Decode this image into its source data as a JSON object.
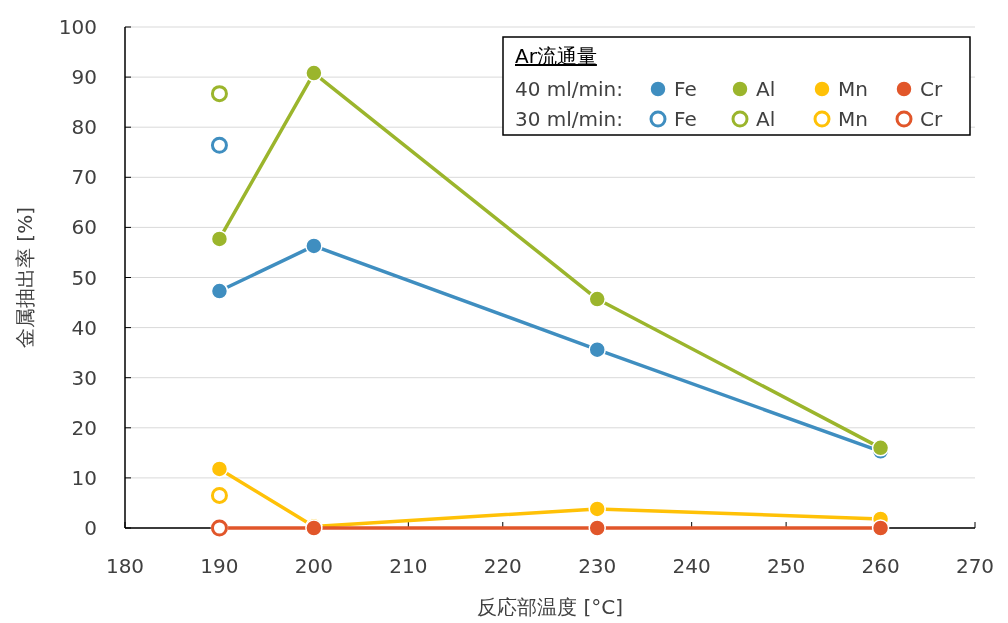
{
  "chart_data": {
    "type": "line",
    "xlabel": "反応部温度 [°C]",
    "ylabel": "金属抽出率 [%]",
    "x": [
      190,
      200,
      230,
      260
    ],
    "xlim": [
      180,
      270
    ],
    "xticks": [
      180,
      190,
      200,
      210,
      220,
      230,
      240,
      250,
      260,
      270
    ],
    "ylim": [
      0,
      100
    ],
    "yticks": [
      0,
      10,
      20,
      30,
      40,
      50,
      60,
      70,
      80,
      90,
      100
    ],
    "grid": "y",
    "marker": "circle",
    "legend": "top right",
    "legend_title": "Ar流通量",
    "annotations": [
      "40 ml/min:",
      "30 ml/min:"
    ],
    "series": [
      {
        "name": "Fe",
        "color": "#3f8ec0",
        "values": [
          47.3,
          56.3,
          35.6,
          15.3
        ]
      },
      {
        "name": "Al",
        "color": "#9bb52c",
        "values": [
          57.7,
          90.8,
          45.7,
          16.0
        ]
      },
      {
        "name": "Mn",
        "color": "#ffc107",
        "values": [
          11.8,
          0.3,
          3.8,
          1.8
        ]
      },
      {
        "name": "Cr",
        "color": "#e1562a",
        "values": [
          0,
          0,
          0,
          0
        ]
      },
      {
        "name": "Fe",
        "type": "scatter",
        "color": "#3f8ec0",
        "values": [
          76.4,
          null,
          null,
          null
        ]
      },
      {
        "name": "Al",
        "type": "scatter",
        "color": "#9bb52c",
        "values": [
          86.7,
          null,
          null,
          null
        ]
      },
      {
        "name": "Mn",
        "type": "scatter",
        "color": "#ffc107",
        "values": [
          6.5,
          null,
          null,
          null
        ]
      },
      {
        "name": "Cr",
        "type": "scatter",
        "color": "#e1562a",
        "values": [
          0,
          null,
          null,
          null
        ]
      }
    ]
  }
}
